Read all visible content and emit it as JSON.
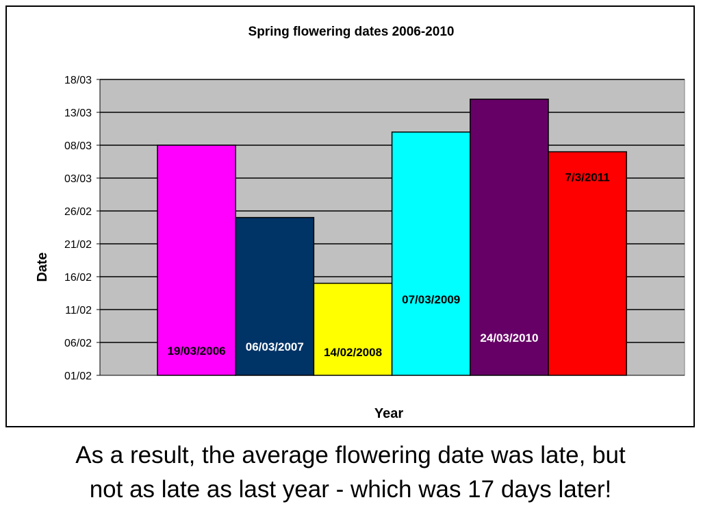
{
  "chart_data": {
    "type": "bar",
    "title": "Spring flowering dates 2006-2010",
    "xlabel": "Year",
    "ylabel": "Date",
    "yticks": [
      "01/02",
      "06/02",
      "11/02",
      "16/02",
      "21/02",
      "26/02",
      "03/03",
      "08/03",
      "13/03",
      "18/03"
    ],
    "ylim": [
      "01/02",
      "18/03"
    ],
    "grid": true,
    "legend": "none",
    "bars": [
      {
        "label": "19/03/2006",
        "value": "08/03",
        "color": "#ff00ff",
        "label_color": "#000000",
        "label_pos": "bottom"
      },
      {
        "label": "06/03/2007",
        "value": "25/02",
        "color": "#003366",
        "label_color": "#ffffff",
        "label_pos": "bottom"
      },
      {
        "label": "14/02/2008",
        "value": "15/02",
        "color": "#ffff00",
        "label_color": "#000000",
        "label_pos": "bottom"
      },
      {
        "label": "07/03/2009",
        "value": "10/03",
        "color": "#00ffff",
        "label_color": "#000000",
        "label_pos": "middle"
      },
      {
        "label": "24/03/2010",
        "value": "15/03",
        "color": "#660066",
        "label_color": "#ffffff",
        "label_pos": "lower"
      },
      {
        "label": "7/3/2011",
        "value": "07/03",
        "color": "#ff0000",
        "label_color": "#000000",
        "label_pos": "top"
      }
    ],
    "plot_background": "#c0c0c0"
  },
  "caption": {
    "line1": "As a result, the average flowering date was late, but",
    "line2": "not as late as last year - which was 17 days later!"
  }
}
